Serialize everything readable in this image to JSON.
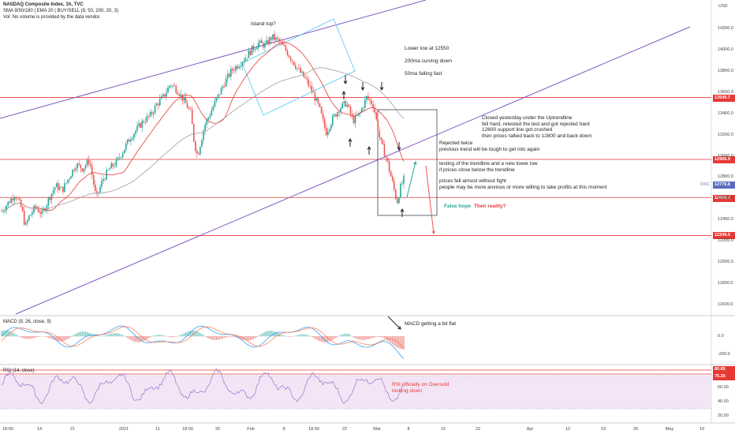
{
  "header": {
    "line1": "NASDAQ Composite Index, 1h, TVC",
    "line2": "SMA 9/50/180 | EMA 20 | BUY/SELL (9, 50, 200, 20, 3)",
    "line3": "Vol: No volume is provided by the data vendor.",
    "currency": "USD"
  },
  "annotations": {
    "island": "Island top?",
    "lower_low": "Lower low at 12550",
    "ma200": "200ma curving down",
    "ma50": "50ma falling fast",
    "closed": "Closed yesterday under the Uptrendline\nfell hard, retested the test and got rejected hard\n12600 support line got crushed\nthen prices rallied back to 12800 and back down",
    "rejected": "Rejected twice\nprevious trend will be tough to get into again",
    "testing": "testing of the trendline and a new lower low\nif prices close below the trendline",
    "fight": "prices fell almost without fight\npeople may be more anxious or more willing to take profits at this moment",
    "false_hope": "False hope",
    "reality": "Then reality?",
    "macd_note": "MACD getting a bit flat",
    "rsi_note": "RSI officially on Oversold\nlooking down"
  },
  "indicators": {
    "macd_label": "MACD (9, 26, close, 9)",
    "rsi_label": "RSI (14, close)"
  },
  "price_levels": [
    {
      "label": "13549.7",
      "color": "#e53935",
      "value": 13549.7
    },
    {
      "label": "12966.9",
      "color": "#e53935",
      "value": 12966.9
    },
    {
      "label": "12608.2",
      "color": "#e53935",
      "value": 12608.2
    },
    {
      "label": "12249.5",
      "color": "#e53935",
      "value": 12249.5
    }
  ],
  "last_price": {
    "label": "OXC",
    "value_label": "12779.8",
    "value": 12779.8
  },
  "rsi_levels": [
    {
      "label": "80.85",
      "color": "#e53935"
    },
    {
      "label": "76.26",
      "color": "#e53935"
    }
  ],
  "colors": {
    "up": "#26a69a",
    "down": "#ef5350",
    "ma_red": "#e53935",
    "ma_gray": "#9e9e9e",
    "trend": "#7e57c2",
    "box": "#4fc3f7",
    "rsi_line": "#9575cd",
    "rsi_fill": "#f3e5f5"
  },
  "chart_data": {
    "type": "candlestick",
    "y_ticks": [
      "14200.0",
      "14000.0",
      "13800.0",
      "13600.0",
      "13400.0",
      "13200.0",
      "13000.0",
      "12800.0",
      "12600.0",
      "12400.0",
      "12200.0",
      "12000.0",
      "11800.0",
      "11600.0"
    ],
    "macd_ticks": [
      "0.0",
      "-200.0"
    ],
    "rsi_ticks": [
      "60.00",
      "40.00",
      "20.00"
    ],
    "x_ticks": [
      "18:00",
      "14",
      "21",
      "2021",
      "11",
      "18:00",
      "25",
      "Feb",
      "8",
      "18:00",
      "22",
      "Mar",
      "8",
      "15",
      "22",
      "Apr",
      "12",
      "19",
      "26",
      "May",
      "10"
    ],
    "close_path": [
      [
        0,
        12480
      ],
      [
        2,
        12560
      ],
      [
        4,
        12640
      ],
      [
        6,
        12500
      ],
      [
        7,
        12330
      ],
      [
        8,
        12420
      ],
      [
        10,
        12520
      ],
      [
        12,
        12450
      ],
      [
        14,
        12600
      ],
      [
        16,
        12720
      ],
      [
        18,
        12680
      ],
      [
        20,
        12800
      ],
      [
        22,
        12920
      ],
      [
        24,
        12880
      ],
      [
        26,
        12960
      ],
      [
        28,
        12600
      ],
      [
        30,
        12780
      ],
      [
        32,
        12880
      ],
      [
        34,
        12940
      ],
      [
        36,
        13050
      ],
      [
        38,
        13170
      ],
      [
        40,
        13250
      ],
      [
        42,
        13330
      ],
      [
        44,
        13380
      ],
      [
        46,
        13490
      ],
      [
        48,
        13560
      ],
      [
        50,
        13680
      ],
      [
        52,
        13620
      ],
      [
        54,
        13520
      ],
      [
        56,
        13400
      ],
      [
        57,
        13120
      ],
      [
        58,
        13000
      ],
      [
        60,
        13280
      ],
      [
        62,
        13420
      ],
      [
        64,
        13560
      ],
      [
        66,
        13690
      ],
      [
        68,
        13800
      ],
      [
        70,
        13860
      ],
      [
        72,
        13920
      ],
      [
        74,
        14000
      ],
      [
        76,
        14060
      ],
      [
        78,
        14040
      ],
      [
        80,
        14120
      ],
      [
        82,
        14080
      ],
      [
        84,
        14000
      ],
      [
        86,
        13900
      ],
      [
        88,
        13800
      ],
      [
        90,
        13720
      ],
      [
        92,
        13600
      ],
      [
        94,
        13450
      ],
      [
        96,
        13220
      ],
      [
        98,
        13350
      ],
      [
        100,
        13450
      ],
      [
        102,
        13500
      ],
      [
        104,
        13330
      ],
      [
        106,
        13400
      ],
      [
        108,
        13550
      ],
      [
        110,
        13480
      ],
      [
        112,
        13150
      ],
      [
        114,
        12960
      ],
      [
        116,
        12700
      ],
      [
        117,
        12560
      ],
      [
        118,
        12700
      ],
      [
        119,
        12780
      ]
    ],
    "ylim": [
      11500,
      14300
    ]
  }
}
